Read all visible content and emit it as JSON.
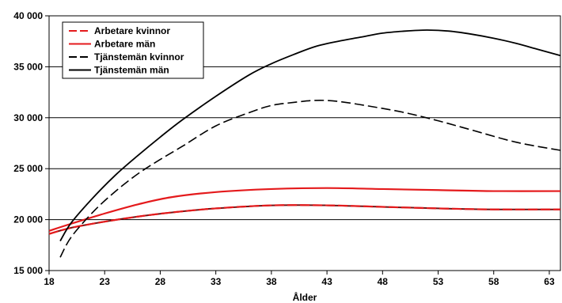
{
  "chart_data": {
    "type": "line",
    "title": "",
    "xlabel": "Ålder",
    "ylabel": "",
    "xlim": [
      18,
      64
    ],
    "ylim": [
      15000,
      40000
    ],
    "x_ticks": [
      18,
      23,
      28,
      33,
      38,
      43,
      48,
      53,
      58,
      63
    ],
    "y_ticks": [
      15000,
      20000,
      25000,
      30000,
      35000,
      40000
    ],
    "y_tick_labels": [
      "15 000",
      "20 000",
      "25 000",
      "30 000",
      "35 000",
      "40 000"
    ],
    "grid": "horizontal",
    "legend_position": "top-left",
    "series": [
      {
        "name": "Arbetare kvinnor",
        "color": "#e41a1c",
        "style": "dashed-over-solid",
        "x": [
          18,
          20,
          23,
          26,
          29,
          33,
          38,
          43,
          48,
          53,
          58,
          64
        ],
        "y": [
          18600,
          19200,
          19800,
          20300,
          20700,
          21100,
          21400,
          21400,
          21250,
          21100,
          21000,
          21000
        ]
      },
      {
        "name": "Arbetare män",
        "color": "#e41a1c",
        "style": "solid",
        "x": [
          18,
          20,
          23,
          26,
          29,
          33,
          38,
          43,
          48,
          53,
          58,
          64
        ],
        "y": [
          18900,
          19600,
          20600,
          21500,
          22200,
          22700,
          23000,
          23100,
          23000,
          22900,
          22800,
          22800
        ]
      },
      {
        "name": "Tjänstemän kvinnor",
        "color": "#000000",
        "style": "dashed",
        "x": [
          19,
          20,
          22,
          24,
          26,
          28,
          30,
          33,
          36,
          38,
          40,
          42,
          44,
          47,
          50,
          53,
          56,
          60,
          64
        ],
        "y": [
          16300,
          18300,
          20800,
          22800,
          24500,
          25900,
          27200,
          29200,
          30500,
          31200,
          31500,
          31700,
          31600,
          31100,
          30500,
          29700,
          28800,
          27600,
          26800
        ]
      },
      {
        "name": "Tjänstemän män",
        "color": "#000000",
        "style": "solid",
        "x": [
          19,
          20,
          22,
          24,
          26,
          28,
          30,
          33,
          36,
          38,
          40,
          42,
          44,
          46,
          48,
          50,
          52,
          54,
          56,
          58,
          60,
          62,
          64
        ],
        "y": [
          17900,
          19700,
          22200,
          24400,
          26300,
          28100,
          29800,
          32100,
          34200,
          35300,
          36200,
          37000,
          37500,
          37900,
          38300,
          38500,
          38600,
          38500,
          38200,
          37800,
          37300,
          36700,
          36100
        ]
      }
    ]
  }
}
